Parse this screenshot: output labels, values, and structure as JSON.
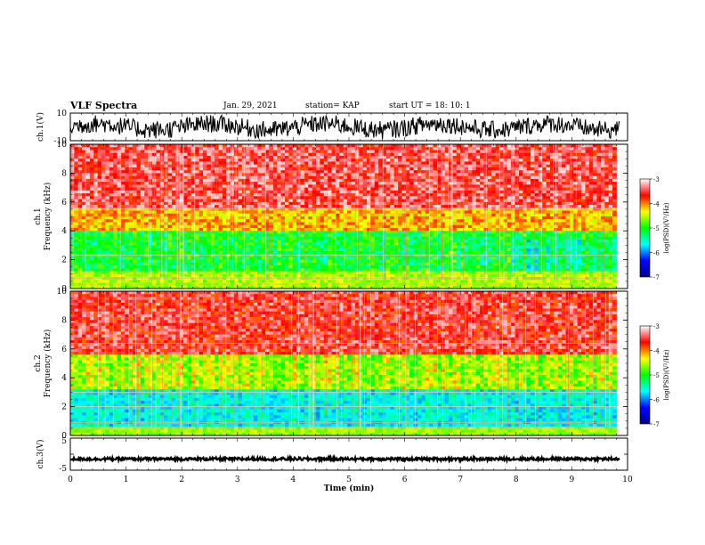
{
  "header": {
    "title": "VLF Spectra",
    "date": "Jan. 29, 2021",
    "station": "station= KAP",
    "start": "start  UT =   18: 10: 1"
  },
  "chart_data": [
    {
      "type": "line",
      "panel": "ch1-waveform",
      "ylabel": "ch.1(V)",
      "ylim": [
        -10,
        10
      ],
      "yticks": [
        "10",
        "-10"
      ],
      "xlim": [
        0,
        10
      ]
    },
    {
      "type": "heatmap",
      "panel": "ch1-spectrogram",
      "ylabel": "ch.1\nFrequency  (kHz)",
      "ylabel_ch": "ch.1",
      "ylabel_freq": "Frequency  (kHz)",
      "ylim": [
        0,
        10
      ],
      "yticks": [
        "0",
        "2",
        "4",
        "6",
        "8",
        "10"
      ],
      "xlim": [
        0,
        9.8
      ],
      "colorbar": {
        "label": "log(PSD)(V²/Hz)",
        "range": [
          -7,
          -3
        ],
        "ticks": [
          "-3",
          "-4",
          "-5",
          "-6",
          "-7"
        ]
      }
    },
    {
      "type": "heatmap",
      "panel": "ch2-spectrogram",
      "ylabel_ch": "ch.2",
      "ylabel_freq": "Frequency  (kHz)",
      "ylim": [
        0,
        10
      ],
      "yticks": [
        "0",
        "2",
        "4",
        "6",
        "8",
        "10"
      ],
      "xlim": [
        0,
        9.8
      ],
      "colorbar": {
        "label": "log(PSD)(V²/Hz)",
        "range": [
          -7,
          -3
        ],
        "ticks": [
          "-3",
          "-4",
          "-5",
          "-6",
          "-7"
        ]
      }
    },
    {
      "type": "line",
      "panel": "ch3-waveform",
      "ylabel": "ch.3(V)",
      "ylim": [
        -5,
        5
      ],
      "yticks": [
        "5",
        "-5"
      ],
      "xlabel": "Time  (min)",
      "xticks": [
        "0",
        "1",
        "2",
        "3",
        "4",
        "5",
        "6",
        "7",
        "8",
        "9",
        "10"
      ],
      "xlim": [
        0,
        10
      ]
    }
  ],
  "colors": {
    "spectrum_scale": [
      "#00008b",
      "#0000ff",
      "#00ffff",
      "#00ff00",
      "#ffff00",
      "#ff0000",
      "#ffffff"
    ],
    "trace": "#000000"
  }
}
